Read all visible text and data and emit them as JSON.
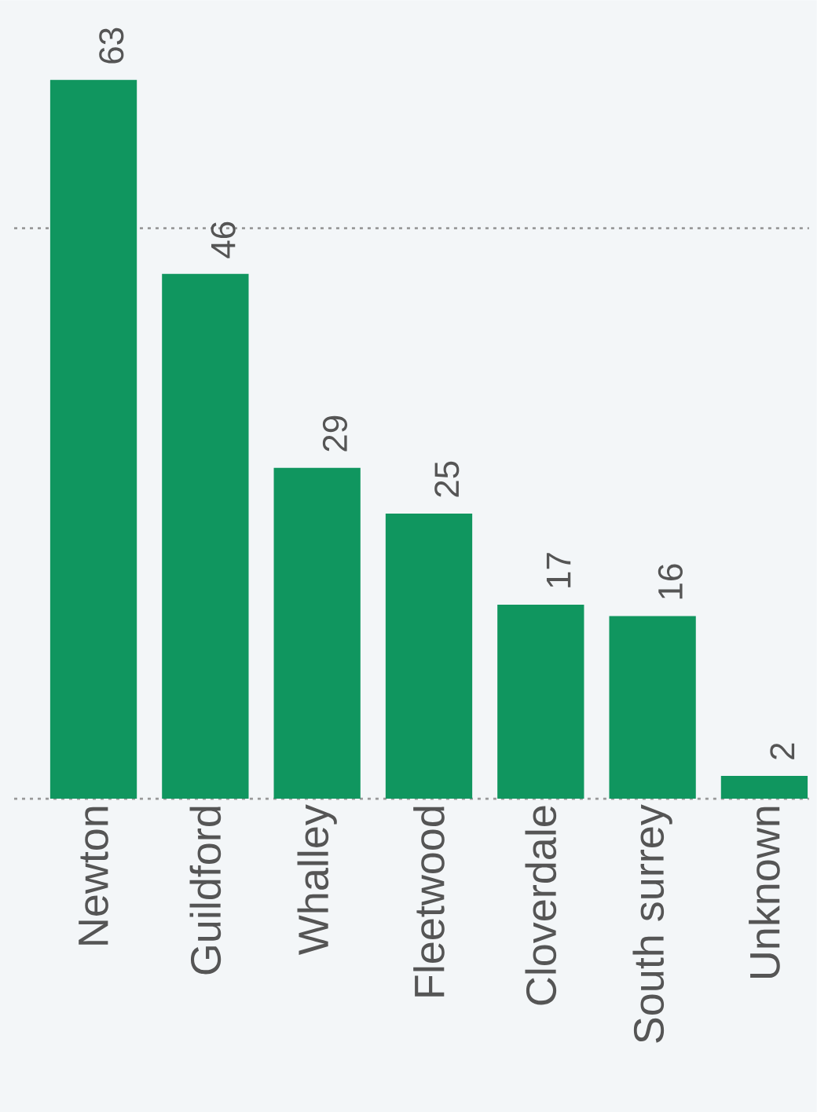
{
  "chart_data": {
    "type": "bar",
    "categories": [
      "Newton",
      "Guildford",
      "Whalley",
      "Fleetwood",
      "Cloverdale",
      "South surrey",
      "Unknown"
    ],
    "values": [
      63,
      46,
      29,
      25,
      17,
      16,
      2
    ],
    "color": "#10965f",
    "ylim": [
      0,
      70
    ],
    "ref_lines": [
      {
        "axis": "y",
        "value": 50,
        "color": "#999999",
        "line_style": "dotted"
      },
      {
        "axis": "y",
        "value": 0,
        "color": "#999999",
        "line_style": "dotted"
      }
    ],
    "tick_labels": "x",
    "data_labels": true
  }
}
